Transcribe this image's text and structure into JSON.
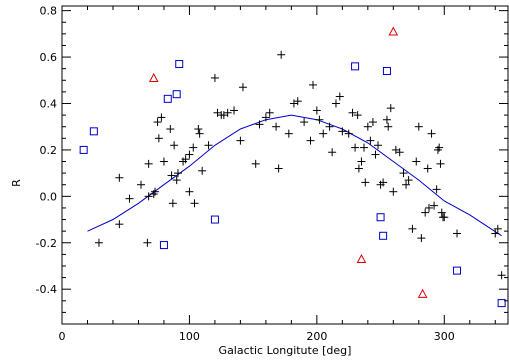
{
  "chart_data": {
    "type": "scatter",
    "title": "",
    "xlabel": "Galactic Longitute [deg]",
    "ylabel": "R",
    "xlim": [
      0,
      350
    ],
    "ylim": [
      -0.55,
      0.82
    ],
    "x_ticks": [
      0,
      100,
      200,
      300
    ],
    "x_tick_labels": [
      "0",
      "100",
      "200",
      "300"
    ],
    "y_ticks": [
      -0.4,
      -0.2,
      0.0,
      0.2,
      0.4,
      0.6,
      0.8
    ],
    "y_tick_labels": [
      "-0.4",
      "-0.2",
      "0.0",
      "0.2",
      "0.4",
      "0.6",
      "0.8"
    ],
    "grid": false,
    "legend": "none",
    "colors": {
      "plus": "#000000",
      "square": "#0000cc",
      "triangle": "#dd0000",
      "curve": "#0000cc"
    },
    "series": [
      {
        "marker": "plus",
        "points": [
          [
            29,
            -0.2
          ],
          [
            45,
            0.08
          ],
          [
            45,
            -0.12
          ],
          [
            53,
            -0.01
          ],
          [
            62,
            0.05
          ],
          [
            67,
            -0.2
          ],
          [
            68,
            0.14
          ],
          [
            68,
            0.0
          ],
          [
            72,
            0.01
          ],
          [
            73,
            0.02
          ],
          [
            75,
            0.32
          ],
          [
            76,
            0.25
          ],
          [
            78,
            0.34
          ],
          [
            80,
            0.15
          ],
          [
            85,
            0.29
          ],
          [
            86,
            0.09
          ],
          [
            87,
            -0.03
          ],
          [
            88,
            0.22
          ],
          [
            90,
            0.07
          ],
          [
            91,
            0.1
          ],
          [
            95,
            0.15
          ],
          [
            97,
            0.16
          ],
          [
            100,
            0.18
          ],
          [
            100,
            0.02
          ],
          [
            103,
            0.21
          ],
          [
            104,
            -0.03
          ],
          [
            107,
            0.29
          ],
          [
            108,
            0.27
          ],
          [
            110,
            0.11
          ],
          [
            115,
            0.22
          ],
          [
            120,
            0.51
          ],
          [
            122,
            0.36
          ],
          [
            125,
            0.35
          ],
          [
            127,
            0.35
          ],
          [
            130,
            0.36
          ],
          [
            135,
            0.37
          ],
          [
            140,
            0.24
          ],
          [
            142,
            0.47
          ],
          [
            152,
            0.14
          ],
          [
            155,
            0.31
          ],
          [
            160,
            0.34
          ],
          [
            163,
            0.36
          ],
          [
            168,
            0.3
          ],
          [
            170,
            0.12
          ],
          [
            172,
            0.61
          ],
          [
            178,
            0.27
          ],
          [
            182,
            0.4
          ],
          [
            185,
            0.41
          ],
          [
            190,
            0.32
          ],
          [
            195,
            0.24
          ],
          [
            197,
            0.48
          ],
          [
            200,
            0.37
          ],
          [
            202,
            0.33
          ],
          [
            205,
            0.27
          ],
          [
            210,
            0.3
          ],
          [
            212,
            0.19
          ],
          [
            215,
            0.4
          ],
          [
            218,
            0.43
          ],
          [
            220,
            0.28
          ],
          [
            225,
            0.27
          ],
          [
            228,
            0.36
          ],
          [
            230,
            0.21
          ],
          [
            232,
            0.35
          ],
          [
            233,
            0.12
          ],
          [
            235,
            0.15
          ],
          [
            237,
            0.21
          ],
          [
            238,
            0.06
          ],
          [
            240,
            0.3
          ],
          [
            242,
            0.24
          ],
          [
            244,
            0.32
          ],
          [
            246,
            0.18
          ],
          [
            248,
            0.22
          ],
          [
            250,
            0.05
          ],
          [
            252,
            0.06
          ],
          [
            255,
            0.33
          ],
          [
            256,
            0.3
          ],
          [
            258,
            0.38
          ],
          [
            260,
            0.02
          ],
          [
            262,
            0.2
          ],
          [
            265,
            0.19
          ],
          [
            268,
            0.1
          ],
          [
            270,
            0.05
          ],
          [
            272,
            0.07
          ],
          [
            275,
            -0.14
          ],
          [
            278,
            0.15
          ],
          [
            280,
            0.3
          ],
          [
            282,
            -0.18
          ],
          [
            285,
            -0.07
          ],
          [
            287,
            0.12
          ],
          [
            288,
            -0.05
          ],
          [
            290,
            0.27
          ],
          [
            292,
            -0.04
          ],
          [
            294,
            0.03
          ],
          [
            295,
            0.2
          ],
          [
            296,
            0.21
          ],
          [
            297,
            0.14
          ],
          [
            298,
            -0.07
          ],
          [
            299,
            -0.09
          ],
          [
            300,
            -0.09
          ],
          [
            310,
            -0.16
          ],
          [
            340,
            -0.16
          ],
          [
            342,
            -0.14
          ],
          [
            345,
            -0.34
          ]
        ]
      },
      {
        "marker": "square",
        "points": [
          [
            17,
            0.2
          ],
          [
            25,
            0.28
          ],
          [
            80,
            -0.21
          ],
          [
            83,
            0.42
          ],
          [
            90,
            0.44
          ],
          [
            92,
            0.57
          ],
          [
            120,
            -0.1
          ],
          [
            230,
            0.56
          ],
          [
            250,
            -0.09
          ],
          [
            252,
            -0.17
          ],
          [
            255,
            0.54
          ],
          [
            310,
            -0.32
          ],
          [
            345,
            -0.46
          ]
        ]
      },
      {
        "marker": "triangle",
        "points": [
          [
            72,
            0.51
          ],
          [
            260,
            0.71
          ],
          [
            235,
            -0.27
          ],
          [
            283,
            -0.42
          ]
        ]
      }
    ],
    "curve": {
      "x": [
        20,
        40,
        60,
        80,
        100,
        120,
        140,
        160,
        180,
        200,
        220,
        240,
        260,
        280,
        300,
        320,
        345
      ],
      "y": [
        -0.15,
        -0.1,
        -0.03,
        0.05,
        0.13,
        0.22,
        0.29,
        0.33,
        0.35,
        0.33,
        0.29,
        0.23,
        0.15,
        0.07,
        -0.02,
        -0.08,
        -0.17
      ]
    }
  }
}
